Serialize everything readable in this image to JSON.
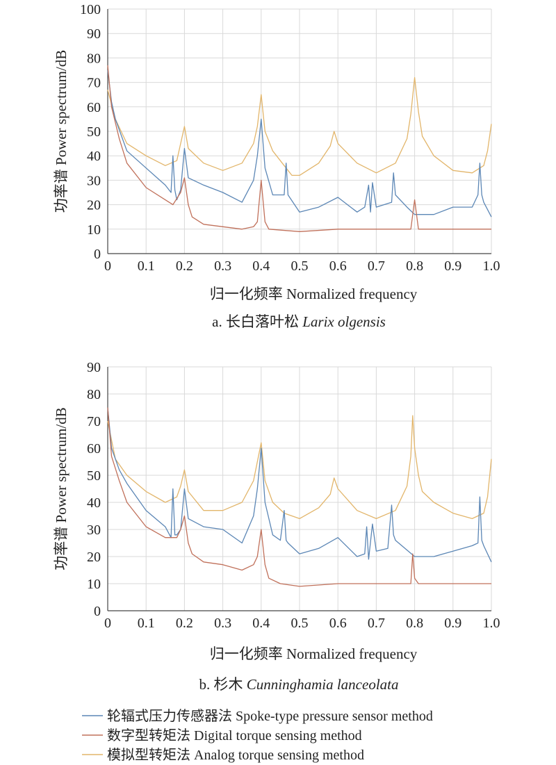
{
  "chart_data": [
    {
      "type": "line",
      "caption_prefix": "a. 长白落叶松 ",
      "caption_species": "Larix olgensis",
      "xlabel": "归一化频率 Normalized frequency",
      "ylabel": "功率谱 Power spectrum/dB",
      "xlim": [
        0,
        1.0
      ],
      "ylim": [
        0,
        100
      ],
      "xticks": [
        "0",
        "0.1",
        "0.2",
        "0.3",
        "0.4",
        "0.5",
        "0.6",
        "0.7",
        "0.8",
        "0.9",
        "1.0"
      ],
      "yticks": [
        "0",
        "10",
        "20",
        "30",
        "40",
        "50",
        "60",
        "70",
        "80",
        "90",
        "100"
      ],
      "grid": true,
      "series": [
        {
          "name": "轮辐式压力传感器法 Spoke-type pressure sensor method",
          "color": "#5b86b5",
          "x": [
            0,
            0.01,
            0.02,
            0.05,
            0.1,
            0.15,
            0.165,
            0.17,
            0.175,
            0.18,
            0.19,
            0.2,
            0.21,
            0.25,
            0.3,
            0.35,
            0.38,
            0.39,
            0.4,
            0.41,
            0.43,
            0.46,
            0.465,
            0.47,
            0.5,
            0.55,
            0.6,
            0.65,
            0.67,
            0.68,
            0.685,
            0.69,
            0.7,
            0.74,
            0.745,
            0.75,
            0.78,
            0.8,
            0.85,
            0.9,
            0.95,
            0.965,
            0.97,
            0.975,
            0.98,
            0.99,
            1.0
          ],
          "y": [
            75,
            62,
            55,
            42,
            35,
            28,
            25,
            40,
            26,
            22,
            26,
            43,
            31,
            28,
            25,
            21,
            30,
            40,
            55,
            35,
            24,
            24,
            37,
            24,
            17,
            19,
            23,
            17,
            19,
            28,
            17,
            29,
            19,
            21,
            33,
            24,
            19,
            16,
            16,
            19,
            19,
            24,
            37,
            24,
            21,
            18,
            15
          ]
        },
        {
          "name": "数字型转矩法 Digital torque sensing method",
          "color": "#c0705a",
          "x": [
            0,
            0.01,
            0.03,
            0.05,
            0.1,
            0.15,
            0.17,
            0.19,
            0.2,
            0.21,
            0.22,
            0.25,
            0.3,
            0.35,
            0.38,
            0.39,
            0.4,
            0.41,
            0.42,
            0.5,
            0.6,
            0.7,
            0.79,
            0.8,
            0.81,
            0.9,
            1.0
          ],
          "y": [
            77,
            60,
            47,
            37,
            27,
            22,
            20,
            25,
            31,
            20,
            15,
            12,
            11,
            10,
            11,
            13,
            30,
            13,
            10,
            9,
            10,
            10,
            10,
            22,
            10,
            10,
            10
          ]
        },
        {
          "name": "模拟型转矩法 Analog torque sensing method",
          "color": "#e2b56a",
          "x": [
            0,
            0.02,
            0.05,
            0.1,
            0.15,
            0.18,
            0.19,
            0.2,
            0.21,
            0.25,
            0.3,
            0.35,
            0.38,
            0.39,
            0.4,
            0.41,
            0.43,
            0.46,
            0.48,
            0.5,
            0.55,
            0.58,
            0.59,
            0.6,
            0.65,
            0.7,
            0.75,
            0.78,
            0.79,
            0.8,
            0.81,
            0.82,
            0.85,
            0.9,
            0.95,
            0.98,
            0.99,
            1.0
          ],
          "y": [
            67,
            55,
            45,
            40,
            36,
            38,
            45,
            52,
            43,
            37,
            34,
            37,
            45,
            52,
            65,
            50,
            42,
            36,
            32,
            32,
            37,
            44,
            50,
            45,
            37,
            33,
            37,
            47,
            57,
            72,
            58,
            48,
            40,
            34,
            33,
            36,
            42,
            53
          ]
        }
      ]
    },
    {
      "type": "line",
      "caption_prefix": "b. 杉木 ",
      "caption_species": "Cunninghamia lanceolata",
      "xlabel": "归一化频率 Normalized frequency",
      "ylabel": "功率谱 Power spectrum/dB",
      "xlim": [
        0,
        1.0
      ],
      "ylim": [
        0,
        90
      ],
      "xticks": [
        "0",
        "0.1",
        "0.2",
        "0.3",
        "0.4",
        "0.5",
        "0.6",
        "0.7",
        "0.8",
        "0.9",
        "1.0"
      ],
      "yticks": [
        "0",
        "10",
        "20",
        "30",
        "40",
        "50",
        "60",
        "70",
        "80",
        "90"
      ],
      "grid": true,
      "series": [
        {
          "name": "轮辐式压力传感器法 Spoke-type pressure sensor method",
          "color": "#5b86b5",
          "x": [
            0,
            0.01,
            0.03,
            0.05,
            0.1,
            0.15,
            0.165,
            0.17,
            0.175,
            0.18,
            0.19,
            0.2,
            0.21,
            0.25,
            0.3,
            0.35,
            0.38,
            0.39,
            0.4,
            0.41,
            0.43,
            0.45,
            0.46,
            0.465,
            0.47,
            0.5,
            0.55,
            0.6,
            0.65,
            0.67,
            0.675,
            0.68,
            0.69,
            0.7,
            0.73,
            0.74,
            0.745,
            0.75,
            0.8,
            0.85,
            0.9,
            0.95,
            0.965,
            0.97,
            0.975,
            0.98,
            1.0
          ],
          "y": [
            75,
            60,
            52,
            47,
            37,
            31,
            27,
            45,
            28,
            28,
            30,
            45,
            34,
            31,
            30,
            25,
            35,
            45,
            60,
            40,
            28,
            26,
            37,
            26,
            25,
            21,
            23,
            27,
            20,
            21,
            31,
            19,
            32,
            22,
            23,
            39,
            28,
            26,
            20,
            20,
            22,
            24,
            25,
            42,
            26,
            24,
            18
          ]
        },
        {
          "name": "数字型转矩法 Digital torque sensing method",
          "color": "#c0705a",
          "x": [
            0,
            0.01,
            0.03,
            0.05,
            0.1,
            0.15,
            0.18,
            0.19,
            0.2,
            0.21,
            0.22,
            0.25,
            0.3,
            0.35,
            0.38,
            0.39,
            0.4,
            0.41,
            0.42,
            0.45,
            0.5,
            0.6,
            0.7,
            0.79,
            0.795,
            0.8,
            0.81,
            0.9,
            1.0
          ],
          "y": [
            75,
            57,
            48,
            40,
            31,
            27,
            27,
            30,
            35,
            25,
            21,
            18,
            17,
            15,
            17,
            20,
            30,
            17,
            12,
            10,
            9,
            10,
            10,
            10,
            21,
            12,
            10,
            10,
            10
          ]
        },
        {
          "name": "模拟型转矩法 Analog torque sensing method",
          "color": "#e2b56a",
          "x": [
            0,
            0.02,
            0.05,
            0.1,
            0.15,
            0.18,
            0.19,
            0.2,
            0.21,
            0.25,
            0.3,
            0.35,
            0.38,
            0.39,
            0.4,
            0.41,
            0.43,
            0.46,
            0.5,
            0.55,
            0.58,
            0.59,
            0.6,
            0.65,
            0.7,
            0.75,
            0.78,
            0.79,
            0.795,
            0.8,
            0.81,
            0.82,
            0.85,
            0.9,
            0.95,
            0.98,
            0.99,
            1.0
          ],
          "y": [
            70,
            56,
            50,
            44,
            40,
            42,
            46,
            52,
            44,
            37,
            37,
            40,
            48,
            55,
            62,
            48,
            40,
            36,
            34,
            38,
            43,
            49,
            45,
            37,
            34,
            37,
            46,
            57,
            72,
            60,
            50,
            44,
            40,
            36,
            34,
            36,
            42,
            56
          ]
        }
      ]
    }
  ],
  "legend": [
    {
      "label": "轮辐式压力传感器法 Spoke-type pressure sensor method",
      "color": "#5b86b5"
    },
    {
      "label": "数字型转矩法 Digital torque sensing method",
      "color": "#c0705a"
    },
    {
      "label": "模拟型转矩法 Analog torque sensing method",
      "color": "#e2b56a"
    }
  ]
}
